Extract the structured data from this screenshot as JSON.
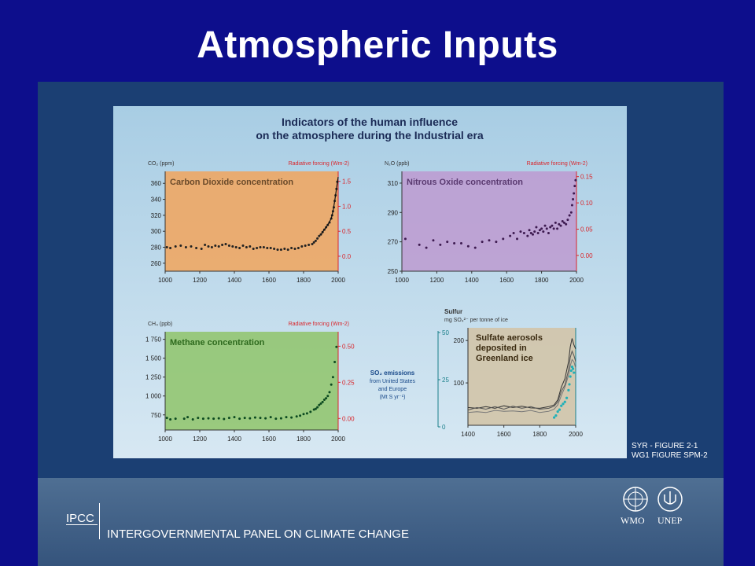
{
  "slide": {
    "title": "Atmospheric Inputs",
    "caption_line1": "SYR - FIGURE 2-1",
    "caption_line2": "WG1 FIGURE SPM-2",
    "footer_org_short": "IPCC",
    "footer_org_full": "INTERGOVERNMENTAL PANEL ON CLIMATE CHANGE",
    "logo_left": "WMO",
    "logo_right": "UNEP"
  },
  "figure": {
    "title_line1": "Indicators of the human influence",
    "title_line2": "on the atmosphere during the Industrial era"
  },
  "chart_data": [
    {
      "type": "scatter",
      "title": "Carbon Dioxide concentration",
      "ylabel": "CO2 (ppm)",
      "y2label": "Radiative forcing (Wm-2)",
      "xlim": [
        1000,
        2000
      ],
      "ylim": [
        250,
        375
      ],
      "y2lim": [
        -0.3,
        1.7
      ],
      "x_ticks": [
        "1000",
        "1200",
        "1400",
        "1600",
        "1800",
        "2000"
      ],
      "y_ticks": [
        "260",
        "280",
        "300",
        "320",
        "340",
        "360"
      ],
      "y2_ticks": [
        "0.0",
        "0.5",
        "1.0",
        "1.5"
      ],
      "background": "#f2a55c",
      "point_color": "#222222",
      "points": {
        "x": [
          1010,
          1030,
          1060,
          1090,
          1120,
          1150,
          1180,
          1210,
          1230,
          1250,
          1270,
          1290,
          1310,
          1330,
          1350,
          1370,
          1390,
          1410,
          1430,
          1450,
          1470,
          1490,
          1510,
          1530,
          1550,
          1570,
          1590,
          1610,
          1630,
          1650,
          1670,
          1690,
          1710,
          1730,
          1750,
          1770,
          1790,
          1810,
          1830,
          1850,
          1860,
          1870,
          1880,
          1890,
          1900,
          1910,
          1920,
          1930,
          1940,
          1950,
          1960,
          1965,
          1970,
          1975,
          1980,
          1985,
          1990,
          1995
        ],
        "y": [
          280,
          279,
          281,
          282,
          280,
          281,
          279,
          278,
          283,
          281,
          280,
          282,
          281,
          283,
          284,
          282,
          281,
          280,
          279,
          282,
          280,
          281,
          278,
          279,
          280,
          280,
          279,
          279,
          278,
          277,
          277,
          278,
          277,
          279,
          278,
          279,
          281,
          282,
          283,
          284,
          286,
          288,
          291,
          294,
          296,
          299,
          302,
          305,
          308,
          311,
          316,
          320,
          325,
          330,
          338,
          345,
          353,
          362
        ]
      },
      "line": {
        "x": [
          1900,
          1920,
          1940,
          1960,
          1970,
          1980,
          1990,
          2000
        ],
        "y": [
          296,
          302,
          308,
          316,
          325,
          338,
          353,
          368
        ]
      }
    },
    {
      "type": "scatter",
      "title": "Nitrous Oxide concentration",
      "ylabel": "N2O (ppb)",
      "y2label": "Radiative forcing (Wm-2)",
      "xlim": [
        1000,
        2000
      ],
      "ylim": [
        250,
        318
      ],
      "y2lim": [
        -0.03,
        0.16
      ],
      "x_ticks": [
        "1000",
        "1200",
        "1400",
        "1600",
        "1800",
        "2000"
      ],
      "y_ticks": [
        "250",
        "270",
        "290",
        "310"
      ],
      "y2_ticks": [
        "0.00",
        "0.05",
        "0.10",
        "0.15"
      ],
      "background": "#bd9ad0",
      "point_color": "#3d1a50",
      "points": {
        "x": [
          1020,
          1100,
          1140,
          1180,
          1220,
          1260,
          1300,
          1340,
          1380,
          1420,
          1460,
          1500,
          1540,
          1580,
          1620,
          1640,
          1660,
          1680,
          1700,
          1720,
          1730,
          1740,
          1750,
          1760,
          1770,
          1780,
          1790,
          1800,
          1810,
          1820,
          1830,
          1840,
          1850,
          1860,
          1870,
          1880,
          1890,
          1900,
          1910,
          1920,
          1930,
          1940,
          1950,
          1960,
          1970,
          1975,
          1980,
          1985,
          1990,
          1995
        ],
        "y": [
          272,
          268,
          266,
          271,
          268,
          270,
          269,
          269,
          267,
          266,
          270,
          271,
          270,
          272,
          274,
          276,
          272,
          277,
          276,
          274,
          278,
          276,
          275,
          277,
          280,
          276,
          278,
          279,
          277,
          281,
          279,
          276,
          280,
          281,
          279,
          283,
          279,
          282,
          281,
          284,
          283,
          282,
          285,
          288,
          290,
          295,
          299,
          303,
          308,
          312
        ]
      }
    },
    {
      "type": "scatter",
      "title": "Methane concentration",
      "ylabel": "CH4 (ppb)",
      "y2label": "Radiative forcing (Wm-2)",
      "xlim": [
        1000,
        2000
      ],
      "ylim": [
        550,
        1850
      ],
      "y2lim": [
        -0.08,
        0.6
      ],
      "x_ticks": [
        "1000",
        "1200",
        "1400",
        "1600",
        "1800",
        "2000"
      ],
      "y_ticks": [
        "750",
        "1 000",
        "1 250",
        "1 500",
        "1 750"
      ],
      "y2_ticks": [
        "0.00",
        "0.25",
        "0.50"
      ],
      "background": "#8fc46a",
      "point_color": "#0c4a20",
      "points": {
        "x": [
          1010,
          1030,
          1060,
          1110,
          1130,
          1160,
          1190,
          1220,
          1250,
          1280,
          1310,
          1340,
          1370,
          1400,
          1430,
          1460,
          1490,
          1520,
          1550,
          1580,
          1610,
          1640,
          1670,
          1700,
          1730,
          1760,
          1780,
          1800,
          1820,
          1840,
          1860,
          1870,
          1880,
          1890,
          1900,
          1910,
          1920,
          1930,
          1940,
          1950,
          1960,
          1970,
          1980,
          1990
        ],
        "y": [
          710,
          690,
          700,
          700,
          720,
          690,
          710,
          700,
          705,
          700,
          705,
          695,
          710,
          720,
          700,
          710,
          705,
          715,
          710,
          705,
          720,
          700,
          705,
          720,
          715,
          730,
          740,
          760,
          770,
          790,
          820,
          830,
          850,
          880,
          900,
          920,
          950,
          970,
          1000,
          1050,
          1150,
          1250,
          1450,
          1650
        ]
      }
    },
    {
      "type": "line",
      "title": "Sulfate aerosols deposited in Greenland ice",
      "ylabel": "Sulfur mg SO4 2- per tonne of ice",
      "y2label": "SO2 emissions from United States and Europe (Mt S yr-1)",
      "xlim": [
        1400,
        2000
      ],
      "ylim": [
        0,
        230
      ],
      "y2lim": [
        0,
        50
      ],
      "x_ticks": [
        "1400",
        "1600",
        "1800",
        "2000"
      ],
      "y_ticks": [
        "100",
        "200"
      ],
      "y2_ticks": [
        "0",
        "25",
        "50"
      ],
      "background": "#d2c3a5",
      "series": [
        {
          "x": [
            1400,
            1450,
            1500,
            1550,
            1600,
            1650,
            1700,
            1750,
            1800,
            1850,
            1880,
            1900,
            1920,
            1940,
            1960,
            1970,
            1980,
            1990,
            2000
          ],
          "y": [
            42,
            40,
            44,
            40,
            46,
            42,
            45,
            41,
            40,
            44,
            48,
            60,
            90,
            110,
            150,
            185,
            205,
            190,
            180
          ]
        },
        {
          "x": [
            1400,
            1450,
            1500,
            1550,
            1600,
            1650,
            1700,
            1750,
            1800,
            1850,
            1880,
            1900,
            1920,
            1940,
            1960,
            1970,
            1980,
            1990,
            2000
          ],
          "y": [
            36,
            42,
            38,
            44,
            38,
            45,
            40,
            44,
            38,
            40,
            45,
            55,
            80,
            95,
            130,
            160,
            175,
            165,
            150
          ]
        },
        {
          "x": [
            1400,
            1450,
            1500,
            1550,
            1600,
            1650,
            1700,
            1750,
            1800,
            1850,
            1880,
            1900,
            1920,
            1940,
            1960,
            1970,
            1980,
            1990,
            2000
          ],
          "y": [
            30,
            32,
            30,
            35,
            33,
            34,
            32,
            35,
            30,
            33,
            38,
            48,
            70,
            90,
            118,
            140,
            155,
            150,
            135
          ]
        }
      ],
      "so2_points": {
        "x": [
          1880,
          1890,
          1900,
          1910,
          1920,
          1930,
          1940,
          1950,
          1960,
          1965,
          1970,
          1975,
          1980,
          1985,
          1990
        ],
        "y": [
          4,
          5,
          7,
          8,
          10,
          11,
          12,
          14,
          18,
          21,
          25,
          28,
          30,
          29,
          27
        ]
      },
      "so2_color": "#21b0b8"
    }
  ]
}
